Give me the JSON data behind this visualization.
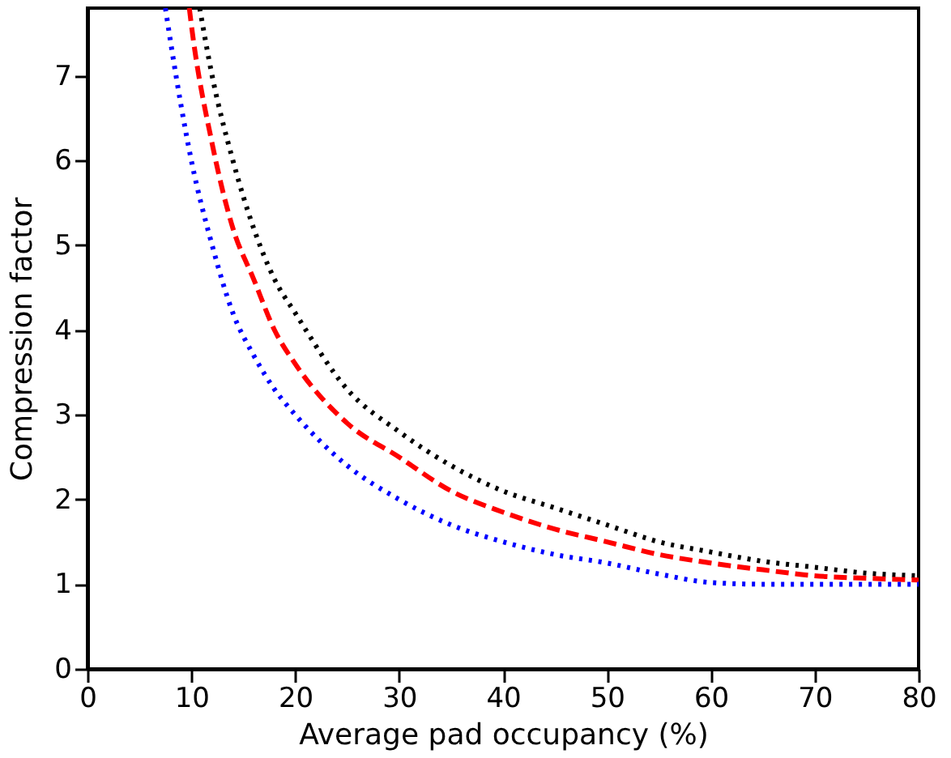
{
  "chart_data": {
    "type": "line",
    "xlabel": "Average pad occupancy (%)",
    "ylabel": "Compression factor",
    "xlim": [
      0,
      80
    ],
    "ylim": [
      0,
      7.8
    ],
    "xticks": [
      0,
      10,
      20,
      30,
      40,
      50,
      60,
      70,
      80
    ],
    "yticks": [
      0,
      1,
      2,
      3,
      4,
      5,
      6,
      7
    ],
    "grid": false,
    "series": [
      {
        "color": "#000000",
        "line_style": "dotted",
        "x": [
          10.8,
          12,
          14,
          16,
          18,
          20,
          25,
          30,
          35,
          40,
          45,
          50,
          55,
          60,
          65,
          70,
          75,
          80
        ],
        "values": [
          7.8,
          7.0,
          6.0,
          5.2,
          4.6,
          4.2,
          3.3,
          2.8,
          2.4,
          2.1,
          1.9,
          1.7,
          1.5,
          1.38,
          1.27,
          1.2,
          1.13,
          1.1
        ]
      },
      {
        "color": "#ff0000",
        "line_style": "dashed",
        "x": [
          9.8,
          10,
          12,
          14,
          16,
          18,
          20,
          25,
          30,
          35,
          40,
          45,
          50,
          55,
          60,
          65,
          70,
          75,
          80
        ],
        "values": [
          7.8,
          7.6,
          6.2,
          5.2,
          4.6,
          4.0,
          3.6,
          2.9,
          2.5,
          2.1,
          1.85,
          1.65,
          1.5,
          1.35,
          1.25,
          1.17,
          1.1,
          1.07,
          1.05
        ]
      },
      {
        "color": "#0000ff",
        "line_style": "dotted",
        "x": [
          7.5,
          8,
          10,
          12,
          14,
          16,
          18,
          20,
          25,
          30,
          35,
          40,
          45,
          50,
          55,
          60,
          65,
          70,
          80
        ],
        "values": [
          7.8,
          7.4,
          6.0,
          5.0,
          4.2,
          3.7,
          3.3,
          3.0,
          2.4,
          2.0,
          1.7,
          1.5,
          1.35,
          1.25,
          1.12,
          1.02,
          1.0,
          1.0,
          1.0
        ]
      }
    ]
  }
}
